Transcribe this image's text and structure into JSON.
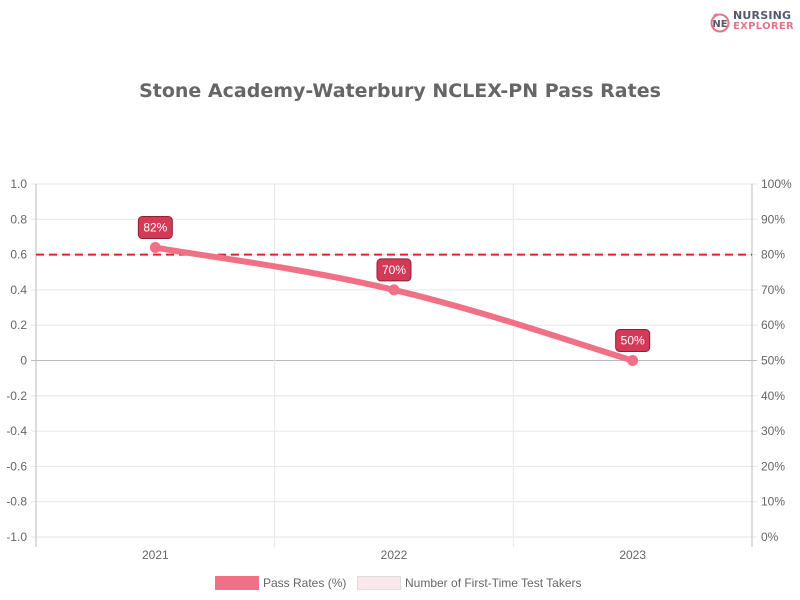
{
  "brand": {
    "line1": "NURSING",
    "line2": "EXPLORER",
    "icon": "nursing-explorer-logo-icon"
  },
  "chart_data": {
    "type": "line",
    "title": "Stone Academy-Waterbury NCLEX-PN Pass Rates",
    "categories": [
      "2021",
      "2022",
      "2023"
    ],
    "series": [
      {
        "name": "Pass Rates (%)",
        "values": [
          82,
          70,
          50
        ],
        "labels": [
          "82%",
          "70%",
          "50%"
        ],
        "color": "#f07086",
        "axis": "right"
      },
      {
        "name": "Number of First-Time Test Takers",
        "values": [],
        "color": "#fbe6ec",
        "axis": "left"
      }
    ],
    "reference_line": {
      "value": 80,
      "axis": "right",
      "style": "dashed",
      "color": "#e8202a"
    },
    "left_axis": {
      "ticks": [
        "1.0",
        "0.8",
        "0.6",
        "0.4",
        "0.2",
        "0",
        "-0.2",
        "-0.4",
        "-0.6",
        "-0.8",
        "-1.0"
      ],
      "ylim": [
        -1.0,
        1.0
      ]
    },
    "right_axis": {
      "ticks": [
        "100%",
        "90%",
        "80%",
        "70%",
        "60%",
        "50%",
        "40%",
        "30%",
        "20%",
        "10%",
        "0%"
      ],
      "ylim": [
        0,
        100
      ]
    },
    "xlabel": "",
    "ylabel": "",
    "grid": true,
    "legend_position": "bottom"
  },
  "legend": {
    "items": [
      {
        "label": "Pass Rates (%)",
        "color": "#f07086"
      },
      {
        "label": "Number of First-Time Test Takers",
        "color": "#fbe6ec"
      }
    ]
  }
}
